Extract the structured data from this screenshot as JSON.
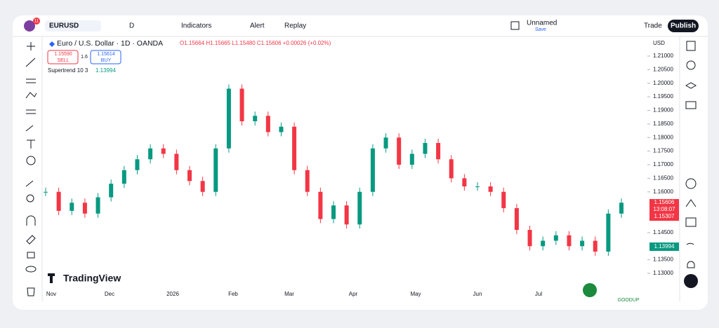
{
  "toolbar": {
    "badge": "11",
    "symbol": "EURUSD",
    "interval": "D",
    "indicators": "Indicators",
    "alert": "Alert",
    "replay": "Replay",
    "layout": "Unnamed",
    "save": "Save",
    "trade": "Trade",
    "publish": "Publish"
  },
  "legend": {
    "title": "Euro / U.S. Dollar · 1D · OANDA",
    "ohlc": "O1.15664 H1.15665 L1.15480 C1.15606 +0.00026 (+0.02%)",
    "sell_price": "1.15590",
    "sell": "SELL",
    "spread": "1.6",
    "buy_price": "1.15614",
    "buy": "BUY",
    "indicator": "Supertrend 10 3",
    "indicator_value": "1.13994"
  },
  "axis": {
    "currency": "USD",
    "price_tag": "1.15606",
    "countdown": "13:08:07",
    "tag2": "1.15307",
    "trend_tag": "1.13994"
  },
  "brand": "TradingView",
  "logo": "GOODUP",
  "chart_data": {
    "type": "candlestick",
    "up_color": "#089981",
    "down_color": "#f23645",
    "x": [
      "Nov",
      "Dec",
      "2026",
      "Feb",
      "Mar",
      "Apr",
      "May",
      "Jun",
      "Jul"
    ],
    "closes": [
      1.16,
      1.153,
      1.156,
      1.152,
      1.158,
      1.163,
      1.168,
      1.172,
      1.176,
      1.174,
      1.168,
      1.164,
      1.16,
      1.176,
      1.198,
      1.186,
      1.188,
      1.182,
      1.184,
      1.168,
      1.16,
      1.15,
      1.155,
      1.148,
      1.16,
      1.176,
      1.18,
      1.17,
      1.174,
      1.178,
      1.172,
      1.165,
      1.162,
      1.162,
      1.16,
      1.154,
      1.146,
      1.14,
      1.142,
      1.144,
      1.14,
      1.142,
      1.138,
      1.152,
      1.156
    ],
    "ylim": [
      1.13,
      1.21
    ],
    "yticks": [
      {
        "value": 1.21,
        "label": "1.21000"
      },
      {
        "value": 1.205,
        "label": "1.20500"
      },
      {
        "value": 1.2,
        "label": "1.20000"
      },
      {
        "value": 1.195,
        "label": "1.19500"
      },
      {
        "value": 1.19,
        "label": "1.19000"
      },
      {
        "value": 1.185,
        "label": "1.18500"
      },
      {
        "value": 1.18,
        "label": "1.18000"
      },
      {
        "value": 1.175,
        "label": "1.17500"
      },
      {
        "value": 1.17,
        "label": "1.17000"
      },
      {
        "value": 1.165,
        "label": "1.16500"
      },
      {
        "value": 1.16,
        "label": "1.16000"
      },
      {
        "value": 1.145,
        "label": "1.14500"
      },
      {
        "value": 1.135,
        "label": "1.13500"
      },
      {
        "value": 1.13,
        "label": "1.13000"
      }
    ]
  }
}
